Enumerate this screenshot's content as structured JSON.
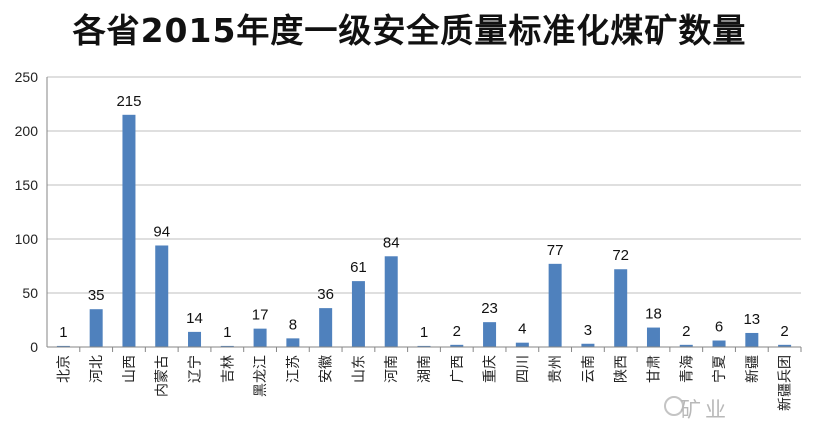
{
  "chart_data": {
    "type": "bar",
    "title": "各省2015年度一级安全质量标准化煤矿数量",
    "xlabel": "",
    "ylabel": "",
    "ylim": [
      0,
      250
    ],
    "yticks": [
      "0",
      "50",
      "100",
      "150",
      "200",
      "250"
    ],
    "grid": true,
    "categories": [
      "北京",
      "河北",
      "山西",
      "内蒙古",
      "辽宁",
      "吉林",
      "黑龙江",
      "江苏",
      "安徽",
      "山东",
      "河南",
      "湖南",
      "广西",
      "重庆",
      "四川",
      "贵州",
      "云南",
      "陕西",
      "甘肃",
      "青海",
      "宁夏",
      "新疆",
      "新疆兵团"
    ],
    "values": [
      1,
      35,
      215,
      94,
      14,
      1,
      17,
      8,
      36,
      61,
      84,
      1,
      2,
      23,
      4,
      77,
      3,
      72,
      18,
      2,
      6,
      13,
      2
    ],
    "colors": {
      "bar": "#4f81bd",
      "grid": "#bfbfbf",
      "axis": "#868686"
    }
  },
  "watermark": {
    "text": "矿业",
    "icon": "wechat-icon"
  }
}
